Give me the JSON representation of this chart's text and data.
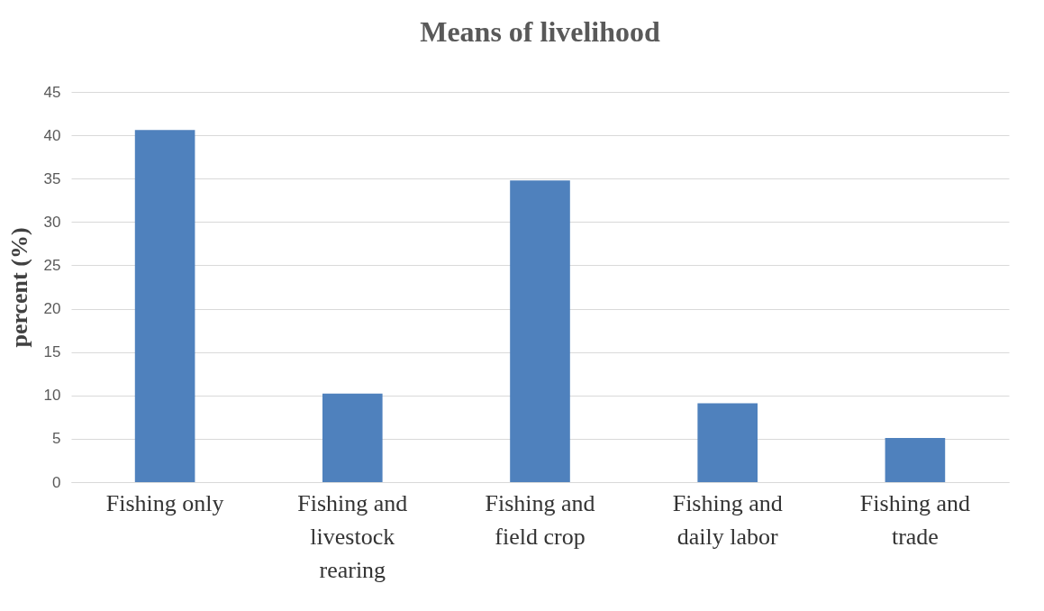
{
  "chart_data": {
    "type": "bar",
    "title": "Means of livelihood",
    "ylabel": "percent (%)",
    "categories": [
      "Fishing only",
      "Fishing and livestock rearing",
      "Fishing and field crop",
      "Fishing and daily labor",
      "Fishing and trade"
    ],
    "values": [
      40.6,
      10.2,
      34.8,
      9.1,
      5.1
    ],
    "color": "#4f81bd",
    "ylim": [
      0,
      45
    ],
    "yticks": [
      0,
      5,
      10,
      15,
      20,
      25,
      30,
      35,
      40,
      45
    ],
    "grid": "y"
  }
}
